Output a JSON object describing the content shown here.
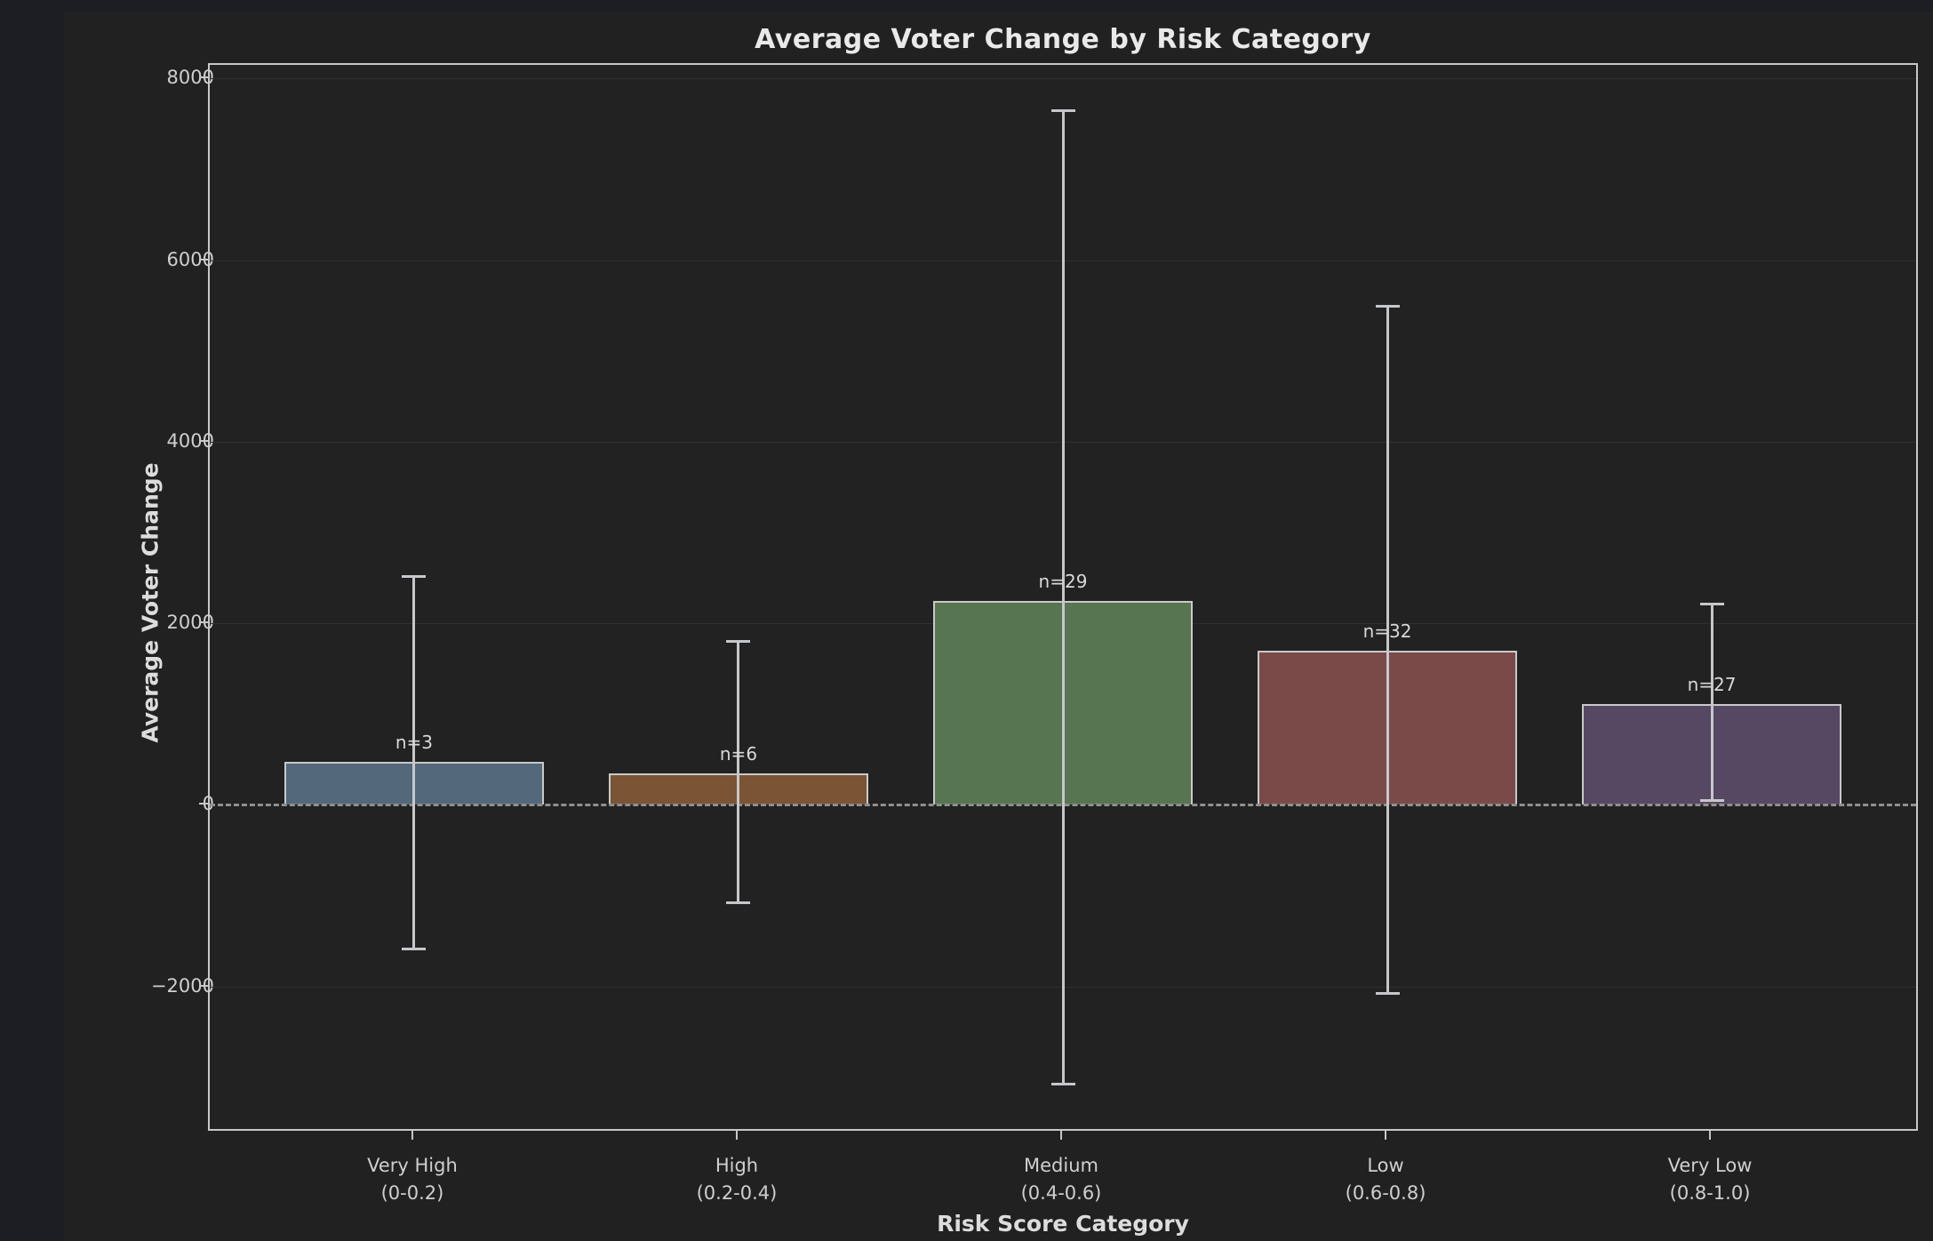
{
  "chart_data": {
    "type": "bar",
    "title": "Average Voter Change by Risk Category",
    "xlabel": "Risk Score Category",
    "ylabel": "Average Voter Change",
    "categories": [
      "Very High",
      "High",
      "Medium",
      "Low",
      "Very Low"
    ],
    "category_sublabels": [
      "(0-0.2)",
      "(0.2-0.4)",
      "(0.4-0.6)",
      "(0.6-0.8)",
      "(0.8-1.0)"
    ],
    "series": [
      {
        "name": "Average Voter Change",
        "values": [
          470,
          350,
          2250,
          1700,
          1110
        ],
        "error_low": [
          -1590,
          -1080,
          -3080,
          -2080,
          50
        ],
        "error_high": [
          2520,
          1800,
          7650,
          5490,
          2210
        ]
      }
    ],
    "sample_counts": [
      3,
      6,
      29,
      32,
      27
    ],
    "count_labels": [
      "n=3",
      "n=6",
      "n=29",
      "n=32",
      "n=27"
    ],
    "yticks": [
      8000,
      6000,
      4000,
      2000,
      0,
      -2000
    ],
    "ytick_labels": [
      "8000",
      "6000",
      "4000",
      "2000",
      "0",
      "−2000"
    ],
    "ylim": [
      -3570,
      8150
    ],
    "xlim": [
      -0.63,
      4.63
    ],
    "bar_width": 0.8,
    "grid": true,
    "zero_line_style": "dashed",
    "legend": "none",
    "colors": {
      "background": "#212121",
      "axes_background": "#222222",
      "spine": "#c7c7c7",
      "grid": "#2f3030",
      "zero_line": "#8f8f8f",
      "error_bar": "#c6c7ca",
      "bar_edge": "#c9c9c9",
      "text": "#dcdcdc",
      "bar_fills": [
        "#53687b",
        "#7a5434",
        "#577551",
        "#7a4a49",
        "#564863"
      ]
    }
  }
}
